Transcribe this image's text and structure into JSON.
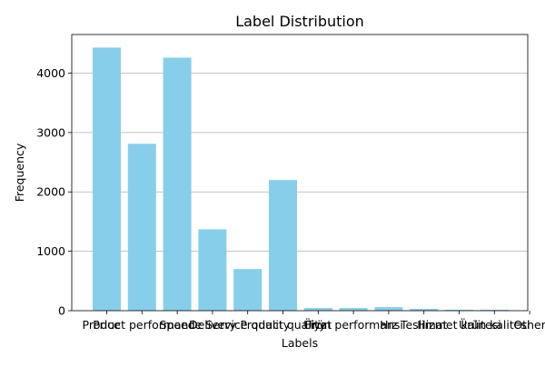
{
  "chart_data": {
    "type": "bar",
    "title": "Label Distribution",
    "xlabel": "Labels",
    "ylabel": "Frequency",
    "categories": [
      "Price",
      "Product performance",
      "Speed",
      "Delivery",
      "Service quality",
      "Product quality",
      "Fiyat",
      "Ürün performansı",
      "Hız",
      "Teslimat",
      "Hizmet kalitesi",
      "Ürün kalitesi",
      "Other"
    ],
    "values": [
      4430,
      2810,
      4260,
      1370,
      700,
      2200,
      45,
      45,
      60,
      30,
      15,
      15,
      0
    ],
    "ylim": [
      0,
      4650
    ],
    "yticks": [
      0,
      1000,
      2000,
      3000,
      4000
    ],
    "grid": "y",
    "legend": "none",
    "colors": {
      "bar": "#87ceeb",
      "grid": "#b0b0b0",
      "axis": "#000000"
    }
  }
}
